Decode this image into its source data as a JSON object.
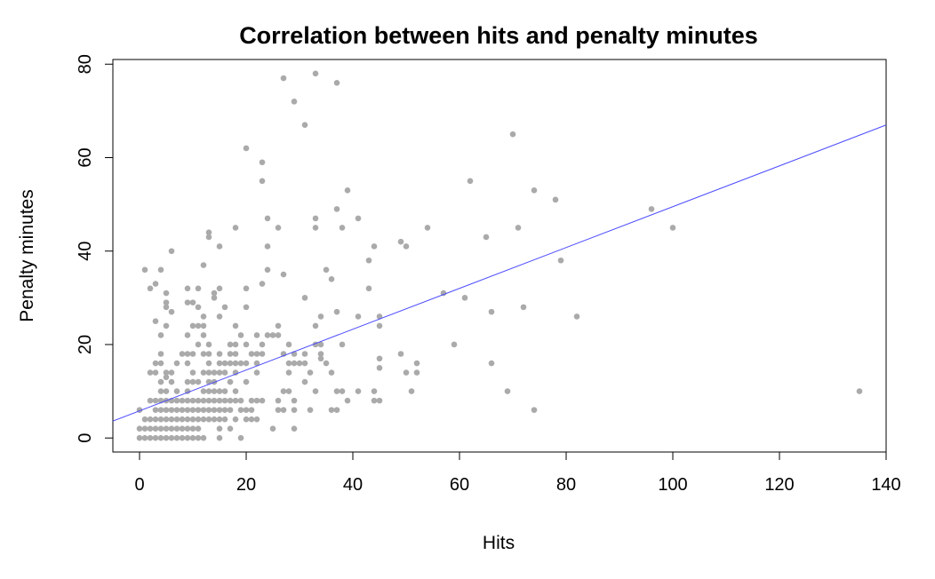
{
  "chart_data": {
    "type": "scatter",
    "title": "Correlation between hits and penalty minutes",
    "xlabel": "Hits",
    "ylabel": "Penalty minutes",
    "xlim": [
      -5,
      140
    ],
    "ylim": [
      -3,
      81
    ],
    "x_ticks": [
      "0",
      "20",
      "40",
      "60",
      "80",
      "100",
      "120",
      "140"
    ],
    "y_ticks": [
      "0",
      "20",
      "40",
      "60",
      "80"
    ],
    "point_color": "#aaaaaa",
    "line_color": "#4a4aff",
    "regression_line": {
      "intercept": 5.8,
      "slope": 0.437
    },
    "points": [
      [
        0,
        0
      ],
      [
        0,
        2
      ],
      [
        0,
        6
      ],
      [
        1,
        0
      ],
      [
        1,
        2
      ],
      [
        1,
        4
      ],
      [
        1,
        36
      ],
      [
        2,
        0
      ],
      [
        2,
        2
      ],
      [
        2,
        4
      ],
      [
        2,
        8
      ],
      [
        2,
        14
      ],
      [
        2,
        32
      ],
      [
        3,
        0
      ],
      [
        3,
        2
      ],
      [
        3,
        4
      ],
      [
        3,
        6
      ],
      [
        3,
        8
      ],
      [
        3,
        14
      ],
      [
        3,
        16
      ],
      [
        3,
        25
      ],
      [
        3,
        33
      ],
      [
        4,
        0
      ],
      [
        4,
        2
      ],
      [
        4,
        4
      ],
      [
        4,
        6
      ],
      [
        4,
        8
      ],
      [
        4,
        10
      ],
      [
        4,
        12
      ],
      [
        4,
        16
      ],
      [
        4,
        18
      ],
      [
        4,
        22
      ],
      [
        4,
        36
      ],
      [
        5,
        0
      ],
      [
        5,
        2
      ],
      [
        5,
        4
      ],
      [
        5,
        6
      ],
      [
        5,
        8
      ],
      [
        5,
        10
      ],
      [
        5,
        13
      ],
      [
        5,
        14
      ],
      [
        5,
        24
      ],
      [
        5,
        28
      ],
      [
        5,
        29
      ],
      [
        5,
        31
      ],
      [
        6,
        0
      ],
      [
        6,
        2
      ],
      [
        6,
        4
      ],
      [
        6,
        6
      ],
      [
        6,
        8
      ],
      [
        6,
        12
      ],
      [
        6,
        14
      ],
      [
        6,
        27
      ],
      [
        6,
        40
      ],
      [
        7,
        0
      ],
      [
        7,
        2
      ],
      [
        7,
        4
      ],
      [
        7,
        6
      ],
      [
        7,
        8
      ],
      [
        7,
        10
      ],
      [
        7,
        16
      ],
      [
        8,
        0
      ],
      [
        8,
        2
      ],
      [
        8,
        4
      ],
      [
        8,
        6
      ],
      [
        8,
        8
      ],
      [
        8,
        18
      ],
      [
        9,
        0
      ],
      [
        9,
        2
      ],
      [
        9,
        4
      ],
      [
        9,
        6
      ],
      [
        9,
        8
      ],
      [
        9,
        10
      ],
      [
        9,
        12
      ],
      [
        9,
        16
      ],
      [
        9,
        18
      ],
      [
        9,
        22
      ],
      [
        9,
        29
      ],
      [
        9,
        32
      ],
      [
        10,
        0
      ],
      [
        10,
        2
      ],
      [
        10,
        4
      ],
      [
        10,
        6
      ],
      [
        10,
        8
      ],
      [
        10,
        12
      ],
      [
        10,
        14
      ],
      [
        10,
        18
      ],
      [
        10,
        24
      ],
      [
        10,
        29
      ],
      [
        11,
        0
      ],
      [
        11,
        2
      ],
      [
        11,
        4
      ],
      [
        11,
        6
      ],
      [
        11,
        8
      ],
      [
        11,
        12
      ],
      [
        11,
        20
      ],
      [
        11,
        24
      ],
      [
        11,
        28
      ],
      [
        11,
        32
      ],
      [
        12,
        0
      ],
      [
        12,
        4
      ],
      [
        12,
        6
      ],
      [
        12,
        8
      ],
      [
        12,
        10
      ],
      [
        12,
        14
      ],
      [
        12,
        18
      ],
      [
        12,
        22
      ],
      [
        12,
        24
      ],
      [
        12,
        26
      ],
      [
        12,
        37
      ],
      [
        13,
        4
      ],
      [
        13,
        6
      ],
      [
        13,
        8
      ],
      [
        13,
        10
      ],
      [
        13,
        12
      ],
      [
        13,
        14
      ],
      [
        13,
        16
      ],
      [
        13,
        18
      ],
      [
        13,
        20
      ],
      [
        13,
        43
      ],
      [
        13,
        44
      ],
      [
        14,
        4
      ],
      [
        14,
        6
      ],
      [
        14,
        8
      ],
      [
        14,
        10
      ],
      [
        14,
        12
      ],
      [
        14,
        14
      ],
      [
        14,
        30
      ],
      [
        14,
        31
      ],
      [
        15,
        0
      ],
      [
        15,
        2
      ],
      [
        15,
        4
      ],
      [
        15,
        6
      ],
      [
        15,
        8
      ],
      [
        15,
        10
      ],
      [
        15,
        14
      ],
      [
        15,
        16
      ],
      [
        15,
        18
      ],
      [
        15,
        26
      ],
      [
        15,
        32
      ],
      [
        15,
        41
      ],
      [
        16,
        4
      ],
      [
        16,
        6
      ],
      [
        16,
        8
      ],
      [
        16,
        10
      ],
      [
        16,
        14
      ],
      [
        16,
        16
      ],
      [
        16,
        28
      ],
      [
        17,
        2
      ],
      [
        17,
        6
      ],
      [
        17,
        8
      ],
      [
        17,
        12
      ],
      [
        17,
        16
      ],
      [
        17,
        18
      ],
      [
        17,
        20
      ],
      [
        18,
        4
      ],
      [
        18,
        8
      ],
      [
        18,
        10
      ],
      [
        18,
        14
      ],
      [
        18,
        16
      ],
      [
        18,
        18
      ],
      [
        18,
        20
      ],
      [
        18,
        24
      ],
      [
        18,
        45
      ],
      [
        19,
        0
      ],
      [
        19,
        6
      ],
      [
        19,
        8
      ],
      [
        19,
        16
      ],
      [
        19,
        22
      ],
      [
        20,
        4
      ],
      [
        20,
        6
      ],
      [
        20,
        12
      ],
      [
        20,
        16
      ],
      [
        20,
        20
      ],
      [
        20,
        28
      ],
      [
        20,
        32
      ],
      [
        20,
        62
      ],
      [
        21,
        4
      ],
      [
        21,
        6
      ],
      [
        21,
        8
      ],
      [
        21,
        18
      ],
      [
        22,
        4
      ],
      [
        22,
        8
      ],
      [
        22,
        14
      ],
      [
        22,
        16
      ],
      [
        22,
        18
      ],
      [
        22,
        22
      ],
      [
        23,
        8
      ],
      [
        23,
        18
      ],
      [
        23,
        20
      ],
      [
        23,
        33
      ],
      [
        23,
        55
      ],
      [
        23,
        59
      ],
      [
        24,
        22
      ],
      [
        24,
        36
      ],
      [
        24,
        41
      ],
      [
        24,
        47
      ],
      [
        25,
        2
      ],
      [
        25,
        22
      ],
      [
        26,
        6
      ],
      [
        26,
        8
      ],
      [
        26,
        22
      ],
      [
        26,
        24
      ],
      [
        26,
        45
      ],
      [
        27,
        6
      ],
      [
        27,
        10
      ],
      [
        27,
        18
      ],
      [
        27,
        35
      ],
      [
        27,
        77
      ],
      [
        28,
        10
      ],
      [
        28,
        14
      ],
      [
        28,
        16
      ],
      [
        28,
        20
      ],
      [
        29,
        2
      ],
      [
        29,
        6
      ],
      [
        29,
        8
      ],
      [
        29,
        16
      ],
      [
        29,
        18
      ],
      [
        29,
        72
      ],
      [
        30,
        16
      ],
      [
        31,
        12
      ],
      [
        31,
        16
      ],
      [
        31,
        18
      ],
      [
        31,
        30
      ],
      [
        31,
        67
      ],
      [
        32,
        6
      ],
      [
        32,
        14
      ],
      [
        33,
        10
      ],
      [
        33,
        20
      ],
      [
        33,
        24
      ],
      [
        33,
        45
      ],
      [
        33,
        47
      ],
      [
        33,
        78
      ],
      [
        34,
        17
      ],
      [
        34,
        18
      ],
      [
        34,
        20
      ],
      [
        34,
        26
      ],
      [
        35,
        16
      ],
      [
        35,
        36
      ],
      [
        36,
        6
      ],
      [
        36,
        14
      ],
      [
        36,
        34
      ],
      [
        37,
        6
      ],
      [
        37,
        10
      ],
      [
        37,
        27
      ],
      [
        37,
        49
      ],
      [
        37,
        76
      ],
      [
        38,
        10
      ],
      [
        38,
        20
      ],
      [
        38,
        45
      ],
      [
        39,
        8
      ],
      [
        39,
        53
      ],
      [
        41,
        10
      ],
      [
        41,
        26
      ],
      [
        41,
        47
      ],
      [
        43,
        32
      ],
      [
        43,
        38
      ],
      [
        44,
        8
      ],
      [
        44,
        10
      ],
      [
        44,
        41
      ],
      [
        45,
        8
      ],
      [
        45,
        15
      ],
      [
        45,
        17
      ],
      [
        45,
        24
      ],
      [
        45,
        26
      ],
      [
        49,
        18
      ],
      [
        49,
        42
      ],
      [
        50,
        14
      ],
      [
        50,
        41
      ],
      [
        51,
        10
      ],
      [
        52,
        14
      ],
      [
        52,
        16
      ],
      [
        54,
        45
      ],
      [
        57,
        31
      ],
      [
        59,
        20
      ],
      [
        61,
        30
      ],
      [
        62,
        55
      ],
      [
        65,
        43
      ],
      [
        66,
        16
      ],
      [
        66,
        27
      ],
      [
        69,
        10
      ],
      [
        70,
        65
      ],
      [
        71,
        45
      ],
      [
        72,
        28
      ],
      [
        74,
        6
      ],
      [
        74,
        53
      ],
      [
        78,
        51
      ],
      [
        79,
        38
      ],
      [
        82,
        26
      ],
      [
        96,
        49
      ],
      [
        100,
        45
      ],
      [
        135,
        10
      ]
    ]
  }
}
